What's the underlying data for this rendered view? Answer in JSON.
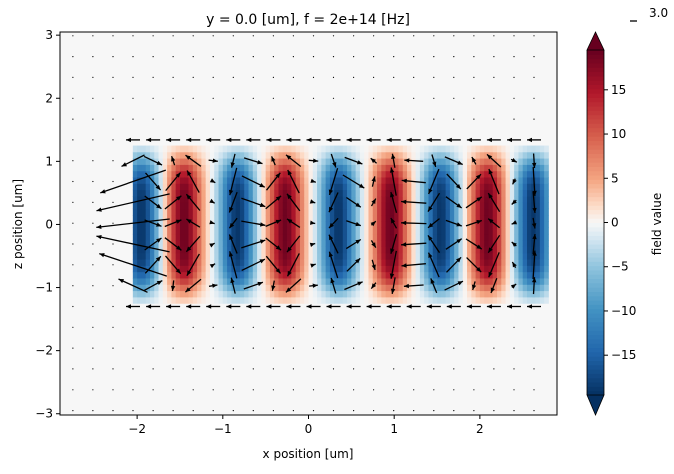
{
  "chart_data": {
    "type": "heatmap",
    "title": "y = 0.0 [um], f = 2e+14 [Hz]",
    "xlabel": "x position [um]",
    "ylabel": "z position [um]",
    "xlim": [
      -2.9,
      2.9
    ],
    "ylim": [
      -3.02,
      3.05
    ],
    "xticks": [
      -2,
      -1,
      0,
      1,
      2
    ],
    "yticks": [
      -3,
      -2,
      -1,
      0,
      1,
      2,
      3
    ],
    "colormap": "RdBu_r",
    "colorbar": {
      "label": "field value",
      "range": [
        -19.5,
        19.5
      ],
      "ticks": [
        -15,
        -10,
        -5,
        0,
        5,
        10,
        15
      ],
      "extend": "both"
    },
    "background_value": 0,
    "field_region": {
      "x": [
        -2.05,
        2.8
      ],
      "z": [
        -1.25,
        1.25
      ]
    },
    "columns": [
      {
        "x": -1.95,
        "value": -19
      },
      {
        "x": -1.45,
        "value": 19
      },
      {
        "x": -0.83,
        "value": -19
      },
      {
        "x": -0.27,
        "value": 19
      },
      {
        "x": 0.35,
        "value": -19
      },
      {
        "x": 0.96,
        "value": 19
      },
      {
        "x": 1.54,
        "value": -19
      },
      {
        "x": 2.09,
        "value": 19
      },
      {
        "x": 2.62,
        "value": -19
      }
    ],
    "quiver": {
      "key_label": "3.0",
      "x_spacing": 0.234,
      "z_spacing": 0.33
    }
  }
}
